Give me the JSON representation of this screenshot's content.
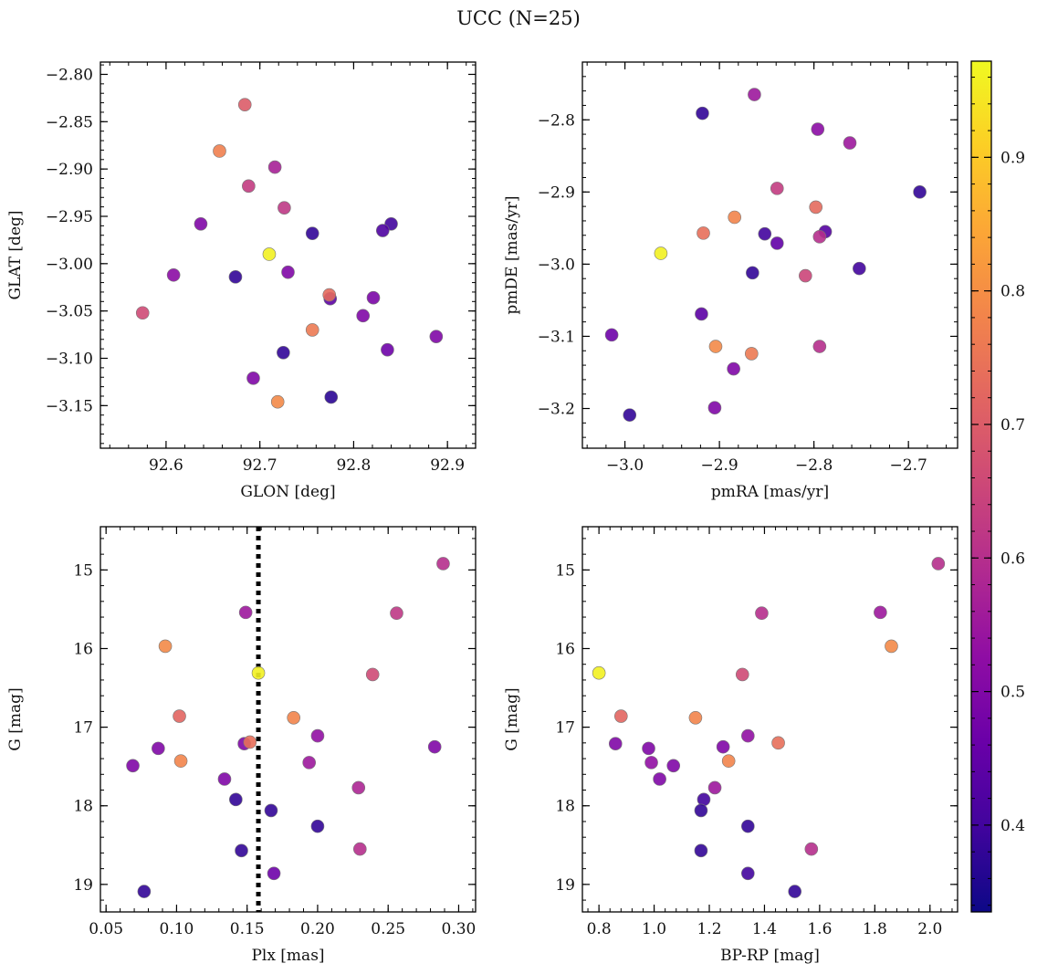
{
  "figure": {
    "title": "UCC (N=25)"
  },
  "chart_data": [
    {
      "type": "scatter",
      "xlabel": "GLON [deg]",
      "ylabel": "GLAT [deg]",
      "xlim": [
        92.53,
        92.93
      ],
      "ylim": [
        -3.195,
        -2.787
      ],
      "y_inverted": false,
      "xticks": [
        92.6,
        92.7,
        92.8,
        92.9
      ],
      "xtick_labels": [
        "92.6",
        "92.7",
        "92.8",
        "92.9"
      ],
      "yticks": [
        -3.15,
        -3.1,
        -3.05,
        -3.0,
        -2.95,
        -2.9,
        -2.85,
        -2.8
      ],
      "ytick_labels": [
        "−3.15",
        "−3.10",
        "−3.05",
        "−3.00",
        "−2.95",
        "−2.90",
        "−2.85",
        "−2.80"
      ],
      "points": [
        {
          "x": 92.684,
          "y": -2.832,
          "c": 0.7
        },
        {
          "x": 92.657,
          "y": -2.881,
          "c": 0.77
        },
        {
          "x": 92.716,
          "y": -2.898,
          "c": 0.57
        },
        {
          "x": 92.688,
          "y": -2.918,
          "c": 0.63
        },
        {
          "x": 92.726,
          "y": -2.941,
          "c": 0.62
        },
        {
          "x": 92.637,
          "y": -2.958,
          "c": 0.5
        },
        {
          "x": 92.84,
          "y": -2.958,
          "c": 0.4
        },
        {
          "x": 92.756,
          "y": -2.968,
          "c": 0.38
        },
        {
          "x": 92.831,
          "y": -2.965,
          "c": 0.42
        },
        {
          "x": 92.71,
          "y": -2.99,
          "c": 0.96
        },
        {
          "x": 92.608,
          "y": -3.012,
          "c": 0.52
        },
        {
          "x": 92.674,
          "y": -3.014,
          "c": 0.38
        },
        {
          "x": 92.73,
          "y": -3.009,
          "c": 0.5
        },
        {
          "x": 92.775,
          "y": -3.037,
          "c": 0.44
        },
        {
          "x": 92.774,
          "y": -3.033,
          "c": 0.73
        },
        {
          "x": 92.821,
          "y": -3.036,
          "c": 0.49
        },
        {
          "x": 92.575,
          "y": -3.052,
          "c": 0.66
        },
        {
          "x": 92.81,
          "y": -3.055,
          "c": 0.5
        },
        {
          "x": 92.756,
          "y": -3.07,
          "c": 0.76
        },
        {
          "x": 92.888,
          "y": -3.077,
          "c": 0.5
        },
        {
          "x": 92.836,
          "y": -3.091,
          "c": 0.47
        },
        {
          "x": 92.725,
          "y": -3.094,
          "c": 0.38
        },
        {
          "x": 92.693,
          "y": -3.121,
          "c": 0.5
        },
        {
          "x": 92.776,
          "y": -3.141,
          "c": 0.37
        },
        {
          "x": 92.719,
          "y": -3.146,
          "c": 0.79
        }
      ]
    },
    {
      "type": "scatter",
      "xlabel": "pmRA [mas/yr]",
      "ylabel": "pmDE [mas/yr]",
      "xlim": [
        -3.045,
        -2.648
      ],
      "ylim": [
        -3.255,
        -2.72
      ],
      "y_inverted": false,
      "xticks": [
        -3.0,
        -2.9,
        -2.8,
        -2.7
      ],
      "xtick_labels": [
        "−3.0",
        "−2.9",
        "−2.8",
        "−2.7"
      ],
      "yticks": [
        -3.2,
        -3.1,
        -3.0,
        -2.9,
        -2.8
      ],
      "ytick_labels": [
        "−3.2",
        "−3.1",
        "−3.0",
        "−2.9",
        "−2.8"
      ],
      "points": [
        {
          "x": -2.863,
          "y": -2.765,
          "c": 0.55
        },
        {
          "x": -2.918,
          "y": -2.791,
          "c": 0.38
        },
        {
          "x": -2.796,
          "y": -2.813,
          "c": 0.52
        },
        {
          "x": -2.762,
          "y": -2.832,
          "c": 0.55
        },
        {
          "x": -2.839,
          "y": -2.895,
          "c": 0.63
        },
        {
          "x": -2.688,
          "y": -2.9,
          "c": 0.38
        },
        {
          "x": -2.798,
          "y": -2.921,
          "c": 0.73
        },
        {
          "x": -2.884,
          "y": -2.935,
          "c": 0.78
        },
        {
          "x": -2.917,
          "y": -2.957,
          "c": 0.74
        },
        {
          "x": -2.852,
          "y": -2.958,
          "c": 0.4
        },
        {
          "x": -2.788,
          "y": -2.955,
          "c": 0.43
        },
        {
          "x": -2.794,
          "y": -2.962,
          "c": 0.6
        },
        {
          "x": -2.839,
          "y": -2.971,
          "c": 0.45
        },
        {
          "x": -2.962,
          "y": -2.985,
          "c": 0.96
        },
        {
          "x": -2.752,
          "y": -3.006,
          "c": 0.4
        },
        {
          "x": -2.865,
          "y": -3.012,
          "c": 0.38
        },
        {
          "x": -2.809,
          "y": -3.016,
          "c": 0.65
        },
        {
          "x": -2.919,
          "y": -3.069,
          "c": 0.44
        },
        {
          "x": -3.014,
          "y": -3.098,
          "c": 0.47
        },
        {
          "x": -2.904,
          "y": -3.114,
          "c": 0.79
        },
        {
          "x": -2.866,
          "y": -3.124,
          "c": 0.76
        },
        {
          "x": -2.794,
          "y": -3.114,
          "c": 0.6
        },
        {
          "x": -2.885,
          "y": -3.145,
          "c": 0.5
        },
        {
          "x": -2.905,
          "y": -3.199,
          "c": 0.5
        },
        {
          "x": -2.995,
          "y": -3.209,
          "c": 0.38
        }
      ]
    },
    {
      "type": "scatter",
      "xlabel": "Plx [mas]",
      "ylabel": "G [mag]",
      "xlim": [
        0.046,
        0.312
      ],
      "ylim": [
        14.45,
        19.35
      ],
      "y_inverted": true,
      "vline": {
        "x": 0.158,
        "style": "dotted",
        "color": "#000000"
      },
      "xticks": [
        0.05,
        0.1,
        0.15,
        0.2,
        0.25,
        0.3
      ],
      "xtick_labels": [
        "0.05",
        "0.10",
        "0.15",
        "0.20",
        "0.25",
        "0.30"
      ],
      "yticks": [
        15,
        16,
        17,
        18,
        19
      ],
      "ytick_labels": [
        "15",
        "16",
        "17",
        "18",
        "19"
      ],
      "points": [
        {
          "x": 0.289,
          "y": 14.92,
          "c": 0.6
        },
        {
          "x": 0.149,
          "y": 15.54,
          "c": 0.55
        },
        {
          "x": 0.256,
          "y": 15.55,
          "c": 0.62
        },
        {
          "x": 0.092,
          "y": 15.97,
          "c": 0.79
        },
        {
          "x": 0.158,
          "y": 16.31,
          "c": 0.96
        },
        {
          "x": 0.239,
          "y": 16.33,
          "c": 0.66
        },
        {
          "x": 0.102,
          "y": 16.86,
          "c": 0.72
        },
        {
          "x": 0.183,
          "y": 16.88,
          "c": 0.78
        },
        {
          "x": 0.2,
          "y": 17.11,
          "c": 0.53
        },
        {
          "x": 0.087,
          "y": 17.27,
          "c": 0.5
        },
        {
          "x": 0.148,
          "y": 17.21,
          "c": 0.5
        },
        {
          "x": 0.152,
          "y": 17.19,
          "c": 0.74
        },
        {
          "x": 0.283,
          "y": 17.25,
          "c": 0.5
        },
        {
          "x": 0.103,
          "y": 17.43,
          "c": 0.78
        },
        {
          "x": 0.194,
          "y": 17.45,
          "c": 0.55
        },
        {
          "x": 0.069,
          "y": 17.49,
          "c": 0.5
        },
        {
          "x": 0.134,
          "y": 17.66,
          "c": 0.5
        },
        {
          "x": 0.229,
          "y": 17.77,
          "c": 0.58
        },
        {
          "x": 0.142,
          "y": 17.92,
          "c": 0.38
        },
        {
          "x": 0.167,
          "y": 18.06,
          "c": 0.38
        },
        {
          "x": 0.2,
          "y": 18.26,
          "c": 0.38
        },
        {
          "x": 0.146,
          "y": 18.57,
          "c": 0.38
        },
        {
          "x": 0.23,
          "y": 18.55,
          "c": 0.6
        },
        {
          "x": 0.169,
          "y": 18.86,
          "c": 0.47
        },
        {
          "x": 0.077,
          "y": 19.09,
          "c": 0.38
        }
      ]
    },
    {
      "type": "scatter",
      "xlabel": "BP-RP [mag]",
      "ylabel": "G [mag]",
      "xlim": [
        0.74,
        2.1
      ],
      "ylim": [
        14.45,
        19.35
      ],
      "y_inverted": true,
      "xticks": [
        0.8,
        1.0,
        1.2,
        1.4,
        1.6,
        1.8,
        2.0
      ],
      "xtick_labels": [
        "0.8",
        "1.0",
        "1.2",
        "1.4",
        "1.6",
        "1.8",
        "2.0"
      ],
      "yticks": [
        15,
        16,
        17,
        18,
        19
      ],
      "ytick_labels": [
        "15",
        "16",
        "17",
        "18",
        "19"
      ],
      "points": [
        {
          "x": 2.03,
          "y": 14.92,
          "c": 0.6
        },
        {
          "x": 1.39,
          "y": 15.55,
          "c": 0.6
        },
        {
          "x": 1.82,
          "y": 15.54,
          "c": 0.55
        },
        {
          "x": 1.86,
          "y": 15.97,
          "c": 0.79
        },
        {
          "x": 0.8,
          "y": 16.31,
          "c": 0.96
        },
        {
          "x": 1.32,
          "y": 16.33,
          "c": 0.66
        },
        {
          "x": 0.88,
          "y": 16.86,
          "c": 0.72
        },
        {
          "x": 1.15,
          "y": 16.88,
          "c": 0.78
        },
        {
          "x": 1.34,
          "y": 17.11,
          "c": 0.53
        },
        {
          "x": 0.86,
          "y": 17.21,
          "c": 0.5
        },
        {
          "x": 0.98,
          "y": 17.27,
          "c": 0.5
        },
        {
          "x": 1.25,
          "y": 17.25,
          "c": 0.5
        },
        {
          "x": 1.45,
          "y": 17.2,
          "c": 0.74
        },
        {
          "x": 0.99,
          "y": 17.45,
          "c": 0.53
        },
        {
          "x": 1.27,
          "y": 17.43,
          "c": 0.78
        },
        {
          "x": 1.07,
          "y": 17.49,
          "c": 0.5
        },
        {
          "x": 1.02,
          "y": 17.66,
          "c": 0.5
        },
        {
          "x": 1.22,
          "y": 17.77,
          "c": 0.55
        },
        {
          "x": 1.18,
          "y": 17.92,
          "c": 0.4
        },
        {
          "x": 1.17,
          "y": 18.06,
          "c": 0.38
        },
        {
          "x": 1.34,
          "y": 18.26,
          "c": 0.38
        },
        {
          "x": 1.17,
          "y": 18.57,
          "c": 0.38
        },
        {
          "x": 1.57,
          "y": 18.55,
          "c": 0.6
        },
        {
          "x": 1.34,
          "y": 18.86,
          "c": 0.4
        },
        {
          "x": 1.51,
          "y": 19.09,
          "c": 0.38
        }
      ]
    }
  ],
  "colorbar": {
    "cmap": "plasma",
    "range": [
      0.335,
      0.972
    ],
    "ticks": [
      0.4,
      0.5,
      0.6,
      0.7,
      0.8,
      0.9
    ],
    "tick_labels": [
      "0.4",
      "0.5",
      "0.6",
      "0.7",
      "0.8",
      "0.9"
    ]
  }
}
